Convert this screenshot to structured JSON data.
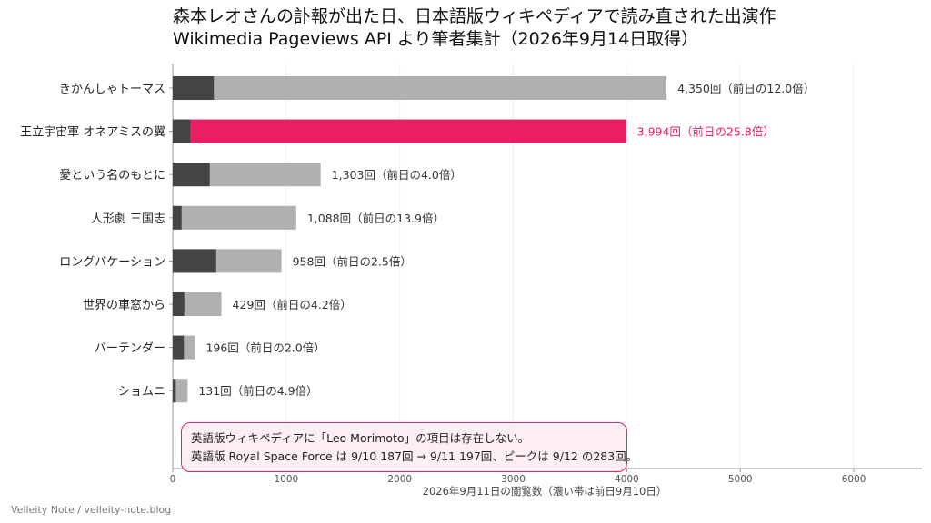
{
  "chart_data": {
    "type": "bar",
    "orientation": "horizontal",
    "stacked_overlay": true,
    "title": "森本レオさんの訃報が出た日、日本語版ウィキペディアで読み直された出演作",
    "subtitle": "Wikimedia Pageviews API より筆者集計（2026年9月14日取得）",
    "xlabel": "2026年9月11日の閲覧数（濃い帯は前日9月10日）",
    "xlim": [
      0,
      6600
    ],
    "xticks": [
      0,
      1000,
      2000,
      3000,
      4000,
      5000,
      6000
    ],
    "grid": true,
    "categories": [
      "きかんしゃトーマス",
      "王立宇宙軍 オネアミスの翼",
      "愛という名のもとに",
      "人形劇 三国志",
      "ロングバケーション",
      "世界の車窓から",
      "バーテンダー",
      "ショムニ"
    ],
    "series": [
      {
        "values": [
          4350,
          3994,
          1303,
          1088,
          958,
          429,
          196,
          131
        ]
      },
      {
        "values": [
          362,
          155,
          326,
          78,
          383,
          102,
          98,
          27
        ]
      }
    ],
    "data_labels": [
      "4,350回（前日の12.0倍）",
      "3,994回（前日の25.8倍）",
      "1,303回（前日の4.0倍）",
      "1,088回（前日の13.9倍）",
      "958回（前日の2.5倍）",
      "429回（前日の4.2倍）",
      "196回（前日の2.0倍）",
      "131回（前日の4.9倍）"
    ],
    "highlight_index": 1,
    "colors": {
      "current": "#b0b0b0",
      "previous": "#444444",
      "highlight": "#e91e63",
      "grid": "#eeeeee",
      "axis": "#999999"
    }
  },
  "note": {
    "line1": "英語版ウィキペディアに「Leo Morimoto」の項目は存在しない。",
    "line2": "英語版 Royal Space Force は 9/10 187回 → 9/11 197回、ピークは 9/12 の283回。"
  },
  "footer": {
    "credit": "Velleity Note / velleity-note.blog"
  }
}
